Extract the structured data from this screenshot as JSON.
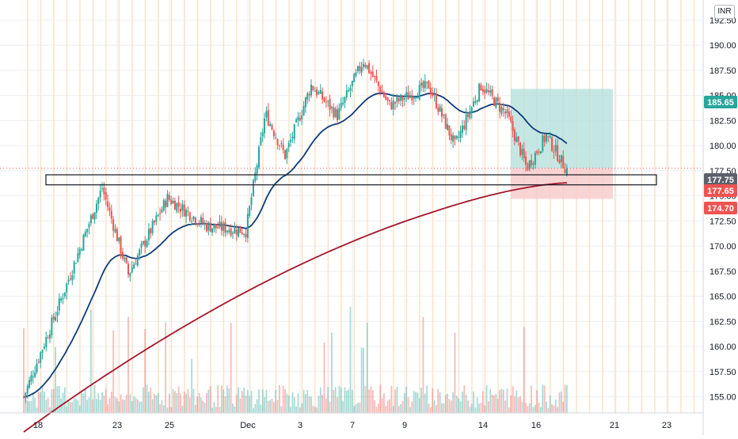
{
  "currency_badge": "INR",
  "chart_data": {
    "type": "candlestick",
    "x_ticks": [
      "18",
      "23",
      "25",
      "Dec",
      "3",
      "7",
      "9",
      "14",
      "16",
      "21",
      "23"
    ],
    "y_ticks": [
      "155.00",
      "157.50",
      "160.00",
      "162.50",
      "165.00",
      "167.50",
      "170.00",
      "172.50",
      "175.00",
      "177.50",
      "180.00",
      "182.50",
      "185.00",
      "187.50",
      "190.00",
      "192.50"
    ],
    "ylim": [
      153.4,
      194.5
    ],
    "grid": true,
    "swing_points": [
      {
        "day": 0,
        "price": 155.0
      },
      {
        "day": 3,
        "price": 165.2
      },
      {
        "day": 6,
        "price": 175.8
      },
      {
        "day": 8,
        "price": 167.2
      },
      {
        "day": 11,
        "price": 174.8
      },
      {
        "day": 14,
        "price": 172.0
      },
      {
        "day": 17,
        "price": 171.5
      },
      {
        "day": 18.5,
        "price": 183.2
      },
      {
        "day": 20,
        "price": 179.0
      },
      {
        "day": 22,
        "price": 186.0
      },
      {
        "day": 24,
        "price": 183.0
      },
      {
        "day": 26,
        "price": 188.5
      },
      {
        "day": 28,
        "price": 184.0
      },
      {
        "day": 31,
        "price": 186.0
      },
      {
        "day": 33,
        "price": 180.0
      },
      {
        "day": 35,
        "price": 186.0
      },
      {
        "day": 37,
        "price": 183.0
      },
      {
        "day": 38.5,
        "price": 177.8
      },
      {
        "day": 40,
        "price": 181.0
      },
      {
        "day": 41.5,
        "price": 177.7
      }
    ],
    "support_zone": [
      176.1,
      177.1
    ],
    "position": {
      "entry": 177.75,
      "target": 185.65,
      "stop": 174.7
    },
    "price_tags": [
      {
        "value": 185.65,
        "label": "185.65",
        "color": "#26a69a"
      },
      {
        "value": 177.75,
        "label": "177.75",
        "color": "#5d606b"
      },
      {
        "value": 177.65,
        "label": "177.65",
        "color": "#ef5350"
      },
      {
        "value": 174.7,
        "label": "174.70",
        "color": "#ef5350"
      }
    ],
    "moving_averages": [
      {
        "color": "#0d3c78",
        "period_short": true
      },
      {
        "color": "#a3162b",
        "period_short": false
      }
    ],
    "colors": {
      "up": "#26a69a",
      "down": "#ef5350",
      "grid": "#eceef2",
      "session": "#fde0c4"
    }
  }
}
